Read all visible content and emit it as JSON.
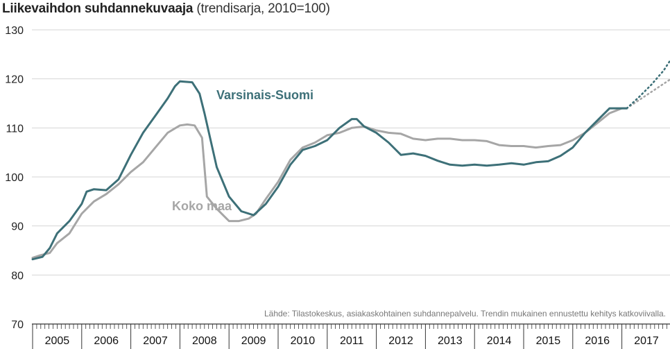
{
  "title": {
    "bold": "Liikevaihdon suhdannekuvaaja",
    "sub": "(trendisarja, 2010=100)"
  },
  "source_note": "Lähde: Tilastokeskus, asiakaskohtainen suhdannepalvelu. Trendin mukainen ennustettu kehitys katkoviivalla.",
  "colors": {
    "varsinais": "#3d7078",
    "koko": "#a6a6a6",
    "grid": "#d4d4d4",
    "axis": "#333333"
  },
  "chart_data": {
    "type": "line",
    "ylim": [
      70,
      130
    ],
    "yticks": [
      70,
      80,
      90,
      100,
      110,
      120,
      130
    ],
    "xlim": [
      2005,
      2018
    ],
    "year_labels": [
      "2005",
      "2006",
      "2007",
      "2008",
      "2009",
      "2010",
      "2011",
      "2012",
      "2013",
      "2014",
      "2015",
      "2016",
      "2017"
    ],
    "grid": "horizontal",
    "series": [
      {
        "name": "Varsinais-Suomi",
        "label_position": "right of 2008 peak",
        "x": [
          2005.0,
          2005.2,
          2005.35,
          2005.5,
          2005.75,
          2006.0,
          2006.1,
          2006.25,
          2006.5,
          2006.75,
          2007.0,
          2007.25,
          2007.5,
          2007.75,
          2007.9,
          2008.0,
          2008.25,
          2008.4,
          2008.5,
          2008.75,
          2009.0,
          2009.25,
          2009.5,
          2009.75,
          2010.0,
          2010.25,
          2010.5,
          2010.75,
          2011.0,
          2011.25,
          2011.5,
          2011.6,
          2011.75,
          2012.0,
          2012.25,
          2012.5,
          2012.75,
          2013.0,
          2013.25,
          2013.5,
          2013.75,
          2014.0,
          2014.25,
          2014.5,
          2014.75,
          2015.0,
          2015.25,
          2015.5,
          2015.75,
          2016.0,
          2016.25,
          2016.5,
          2016.75,
          2017.0,
          2017.1
        ],
        "y": [
          83.2,
          83.7,
          85.5,
          88.5,
          91.0,
          94.5,
          97.0,
          97.5,
          97.3,
          99.5,
          104.5,
          109.0,
          112.5,
          116.0,
          118.5,
          119.5,
          119.3,
          117.0,
          113.0,
          102.0,
          96.0,
          93.0,
          92.2,
          94.5,
          98.0,
          102.5,
          105.5,
          106.3,
          107.5,
          110.0,
          111.8,
          111.8,
          110.3,
          109.0,
          107.0,
          104.5,
          104.8,
          104.3,
          103.3,
          102.5,
          102.3,
          102.5,
          102.3,
          102.5,
          102.8,
          102.5,
          103.0,
          103.2,
          104.3,
          106.0,
          109.0,
          111.5,
          114.0,
          114.0,
          114.0
        ]
      },
      {
        "name": "",
        "dashed": true,
        "x": [
          2017.1,
          2017.35,
          2017.6,
          2017.85,
          2018.0
        ],
        "y": [
          114.0,
          116.3,
          118.8,
          121.7,
          124.0
        ]
      },
      {
        "name": "Koko maa",
        "label_position": "below 2009 trough",
        "x": [
          2005.0,
          2005.15,
          2005.35,
          2005.5,
          2005.75,
          2006.0,
          2006.25,
          2006.5,
          2006.75,
          2007.0,
          2007.25,
          2007.5,
          2007.75,
          2008.0,
          2008.15,
          2008.3,
          2008.45,
          2008.55,
          2008.75,
          2009.0,
          2009.2,
          2009.4,
          2009.55,
          2009.75,
          2010.0,
          2010.25,
          2010.5,
          2010.75,
          2011.0,
          2011.25,
          2011.5,
          2011.75,
          2012.0,
          2012.25,
          2012.5,
          2012.75,
          2013.0,
          2013.25,
          2013.5,
          2013.75,
          2014.0,
          2014.25,
          2014.5,
          2014.75,
          2015.0,
          2015.25,
          2015.5,
          2015.75,
          2016.0,
          2016.25,
          2016.5,
          2016.75,
          2017.0,
          2017.1
        ],
        "y": [
          83.5,
          84.0,
          84.5,
          86.5,
          88.5,
          92.5,
          95.0,
          96.5,
          98.5,
          101.0,
          103.0,
          106.0,
          109.0,
          110.5,
          110.7,
          110.5,
          108.0,
          96.0,
          93.5,
          91.0,
          91.0,
          91.5,
          92.5,
          95.5,
          99.0,
          103.5,
          106.0,
          107.0,
          108.5,
          109.0,
          110.0,
          110.3,
          109.5,
          109.0,
          108.8,
          107.8,
          107.5,
          107.8,
          107.8,
          107.5,
          107.5,
          107.3,
          106.5,
          106.3,
          106.3,
          106.0,
          106.3,
          106.5,
          107.5,
          109.0,
          111.0,
          113.0,
          114.0,
          114.0
        ]
      },
      {
        "name": "",
        "dashed": true,
        "x": [
          2017.1,
          2017.4,
          2017.7,
          2018.0
        ],
        "y": [
          114.0,
          116.0,
          118.0,
          120.0
        ]
      }
    ]
  }
}
